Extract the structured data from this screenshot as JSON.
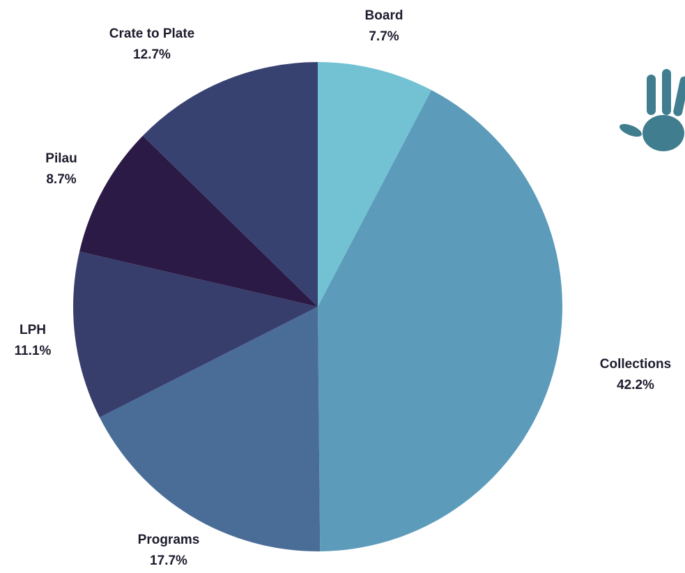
{
  "chart_data": {
    "type": "pie",
    "title": "",
    "slices": [
      {
        "label": "Board",
        "value": 7.7,
        "pct_label": "7.7%",
        "color": "#72C2D4"
      },
      {
        "label": "Collections",
        "value": 42.2,
        "pct_label": "42.2%",
        "color": "#5C9BBA"
      },
      {
        "label": "Programs",
        "value": 17.7,
        "pct_label": "17.7%",
        "color": "#4A6D97"
      },
      {
        "label": "LPH",
        "value": 11.1,
        "pct_label": "11.1%",
        "color": "#373E6B"
      },
      {
        "label": "Pilau",
        "value": 8.7,
        "pct_label": "8.7%",
        "color": "#2B1A45"
      },
      {
        "label": "Crate to Plate",
        "value": 12.7,
        "pct_label": "12.7%",
        "color": "#384270"
      }
    ],
    "start": "12 o'clock",
    "direction": "clockwise",
    "legend": "none (labels outside slices)"
  },
  "decoration": {
    "logo_icon": "hand-print-icon",
    "logo_color": "#3F7D8F"
  }
}
